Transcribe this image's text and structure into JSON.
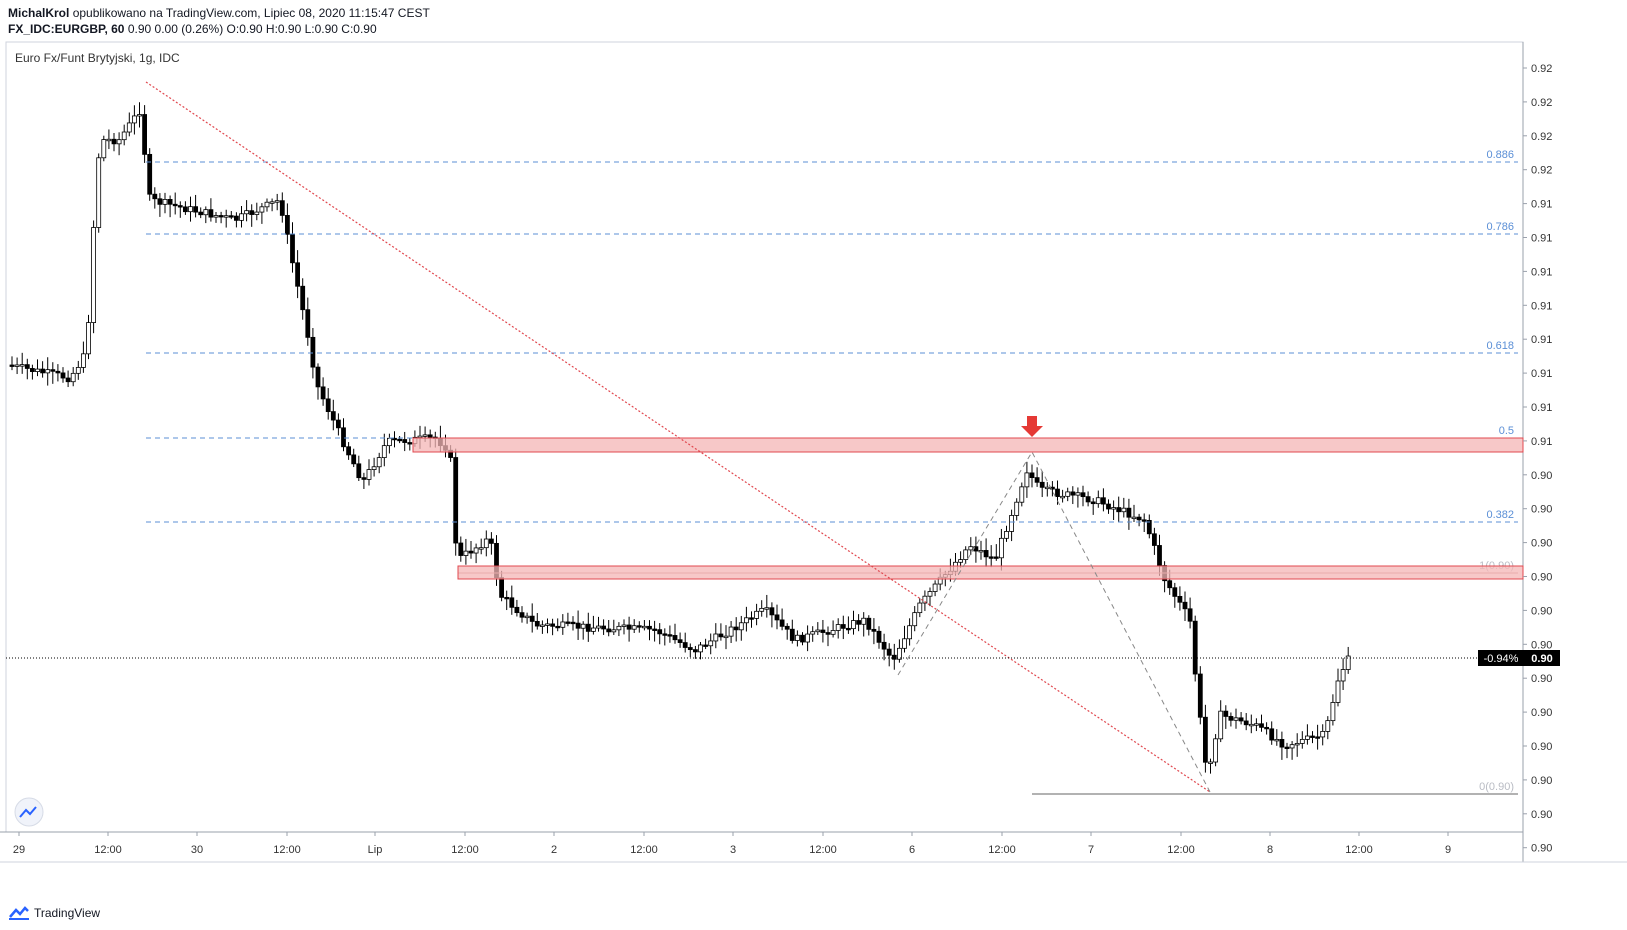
{
  "header": {
    "author": "MichalKrol",
    "published": "opublikowano na TradingView.com, Lipiec 08, 2020 11:15:47 CEST",
    "symbol": "FX_IDC:EURGBP, 60",
    "ohlc": "0.90 0.00 (0.26%) O:0.90 H:0.90 L:0.90 C:0.90"
  },
  "footer": {
    "brand": "TradingView"
  },
  "colors": {
    "up": "#ffffff",
    "down": "#000000",
    "fib": "#5b8fd6",
    "zone_fill": "#f4b6b6",
    "zone_border": "#e0484f",
    "trend": "#e0484f",
    "arrow": "#e53935"
  },
  "chart_data": {
    "type": "candlestick",
    "title": "Euro Fx/Funt Brytyjski, 1g, IDC",
    "price_axis_labels": [
      "0.92",
      "0.92",
      "0.92",
      "0.92",
      "0.91",
      "0.91",
      "0.91",
      "0.91",
      "0.91",
      "0.91",
      "0.91",
      "0.91",
      "0.90",
      "0.90",
      "0.90",
      "0.90",
      "0.90",
      "0.90",
      "0.90",
      "0.90",
      "0.90",
      "0.90",
      "0.90",
      "0.90"
    ],
    "time_axis_labels": [
      "29",
      "12:00",
      "30",
      "12:00",
      "Lip",
      "12:00",
      "2",
      "12:00",
      "3",
      "12:00",
      "6",
      "12:00",
      "7",
      "12:00",
      "8",
      "12:00",
      "9"
    ],
    "current_change": "-0.94%",
    "current_price": "0.90",
    "fib_levels": [
      {
        "label": "0.886"
      },
      {
        "label": "0.786"
      },
      {
        "label": "0.618"
      },
      {
        "label": "0.5"
      },
      {
        "label": "0.382"
      },
      {
        "label": "1(0.90)"
      },
      {
        "label": "0(0.90)"
      }
    ],
    "zones": [
      {
        "name": "resistance-zone-upper"
      },
      {
        "name": "resistance-zone-lower"
      }
    ]
  }
}
